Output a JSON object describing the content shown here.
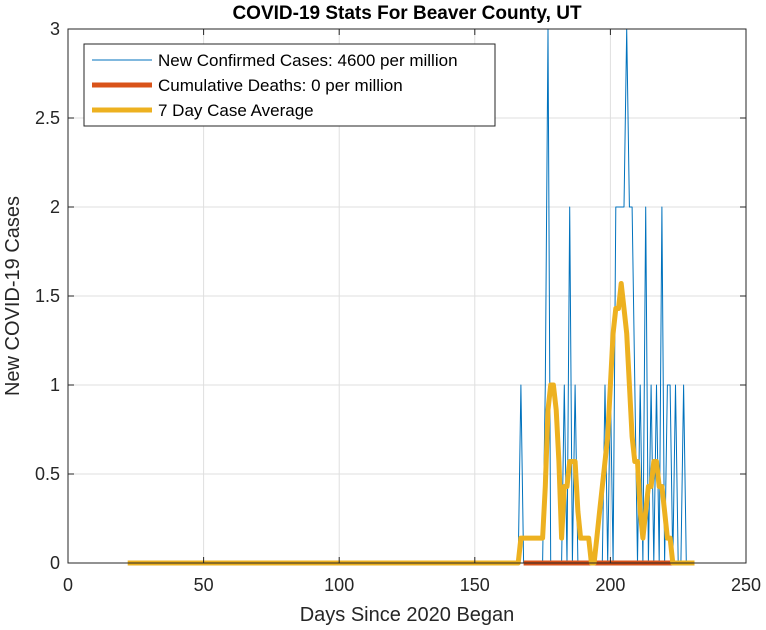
{
  "chart_data": {
    "type": "line",
    "title": "COVID-19 Stats For Beaver County, UT",
    "xlabel": "Days Since 2020 Began",
    "ylabel": "New COVID-19 Cases",
    "xlim": [
      0,
      250
    ],
    "ylim": [
      0,
      3
    ],
    "xticks": [
      "0",
      "50",
      "100",
      "150",
      "200",
      "250"
    ],
    "yticks": [
      "0",
      "0.5",
      "1",
      "1.5",
      "2",
      "2.5",
      "3"
    ],
    "grid": true,
    "legend_position": "top-left",
    "series": [
      {
        "name": "New Confirmed Cases: 4600 per million",
        "color": "#0072BD",
        "x": [
          22,
          166,
          167,
          168,
          175,
          176,
          177,
          178,
          179,
          182,
          183,
          184,
          185,
          186,
          187,
          188,
          189,
          190,
          191,
          197,
          198,
          199,
          200,
          201,
          202,
          203,
          204,
          205,
          206,
          207,
          208,
          209,
          210,
          211,
          212,
          213,
          214,
          215,
          216,
          217,
          218,
          219,
          220,
          221,
          222,
          223,
          224,
          225,
          226,
          227,
          228,
          229,
          230,
          231
        ],
        "y": [
          0,
          0,
          1,
          0,
          0,
          1,
          3,
          0,
          0,
          0,
          1,
          0,
          2,
          0,
          1,
          0,
          0,
          0,
          0,
          0,
          1,
          0,
          1,
          0,
          2,
          2,
          2,
          2,
          3,
          2,
          2,
          1,
          0,
          1,
          0,
          2,
          0,
          1,
          0,
          1,
          0,
          2,
          0,
          1,
          1,
          0,
          1,
          0,
          0,
          1,
          0,
          0,
          0,
          0
        ]
      },
      {
        "name": "Cumulative Deaths: 0 per million",
        "color": "#D95319",
        "x": [
          168,
          230
        ],
        "y": [
          0,
          0
        ]
      },
      {
        "name": "7 Day Case Average",
        "color": "#EDB120",
        "x": [
          22,
          166,
          167,
          168,
          175,
          176,
          177,
          178,
          179,
          180,
          181,
          182,
          183,
          184,
          185,
          186,
          187,
          188,
          189,
          190,
          191,
          192,
          193,
          194,
          195,
          196,
          197,
          198,
          199,
          200,
          201,
          202,
          203,
          204,
          205,
          206,
          207,
          208,
          209,
          210,
          211,
          212,
          213,
          214,
          215,
          216,
          217,
          218,
          219,
          220,
          221,
          222,
          223,
          224,
          225,
          226,
          227,
          228,
          229,
          230,
          231
        ],
        "y": [
          0,
          0,
          0.14,
          0.14,
          0.14,
          0.43,
          0.86,
          1.0,
          1.0,
          0.86,
          0.57,
          0.14,
          0.43,
          0.43,
          0.57,
          0.57,
          0.57,
          0.29,
          0.14,
          0.14,
          0.14,
          0.14,
          0.0,
          0.0,
          0.14,
          0.29,
          0.43,
          0.57,
          0.71,
          1.0,
          1.29,
          1.43,
          1.43,
          1.57,
          1.43,
          1.29,
          1.0,
          0.71,
          0.57,
          0.57,
          0.29,
          0.14,
          0.29,
          0.43,
          0.43,
          0.57,
          0.57,
          0.43,
          0.43,
          0.29,
          0.14,
          0.14,
          0.0,
          0.0,
          0.0,
          0.0,
          0.0,
          0.0,
          0.0,
          0.0,
          0.0
        ]
      }
    ]
  }
}
